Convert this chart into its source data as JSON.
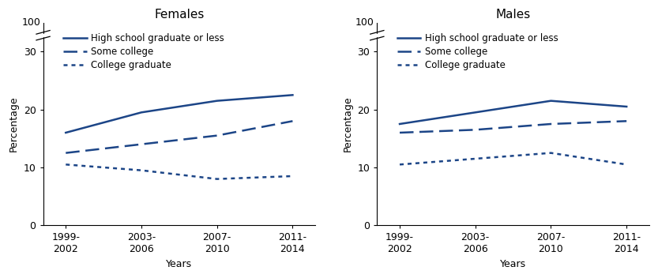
{
  "x_labels": [
    "1999-\n2002",
    "2003-\n2006",
    "2007-\n2010",
    "2011-\n2014"
  ],
  "x_positions": [
    0,
    1,
    2,
    3
  ],
  "females": {
    "title": "Females",
    "hs_or_less": [
      16.0,
      19.5,
      21.5,
      22.5
    ],
    "some_college": [
      12.5,
      14.0,
      15.5,
      18.0
    ],
    "college_grad": [
      10.5,
      9.5,
      8.0,
      8.5
    ]
  },
  "males": {
    "title": "Males",
    "hs_or_less": [
      17.5,
      19.5,
      21.5,
      20.5
    ],
    "some_college": [
      16.0,
      16.5,
      17.5,
      18.0
    ],
    "college_grad": [
      10.5,
      11.5,
      12.5,
      10.5
    ]
  },
  "line_color": "#1c4587",
  "ylabel": "Percentage",
  "xlabel": "Years",
  "ylim": [
    0,
    35
  ],
  "yticks": [
    0,
    10,
    20,
    30
  ],
  "y100_label": "100",
  "legend_labels": [
    "High school graduate or less",
    "Some college",
    "College graduate"
  ],
  "title_fontsize": 11,
  "label_fontsize": 9,
  "tick_fontsize": 9,
  "legend_fontsize": 8.5
}
